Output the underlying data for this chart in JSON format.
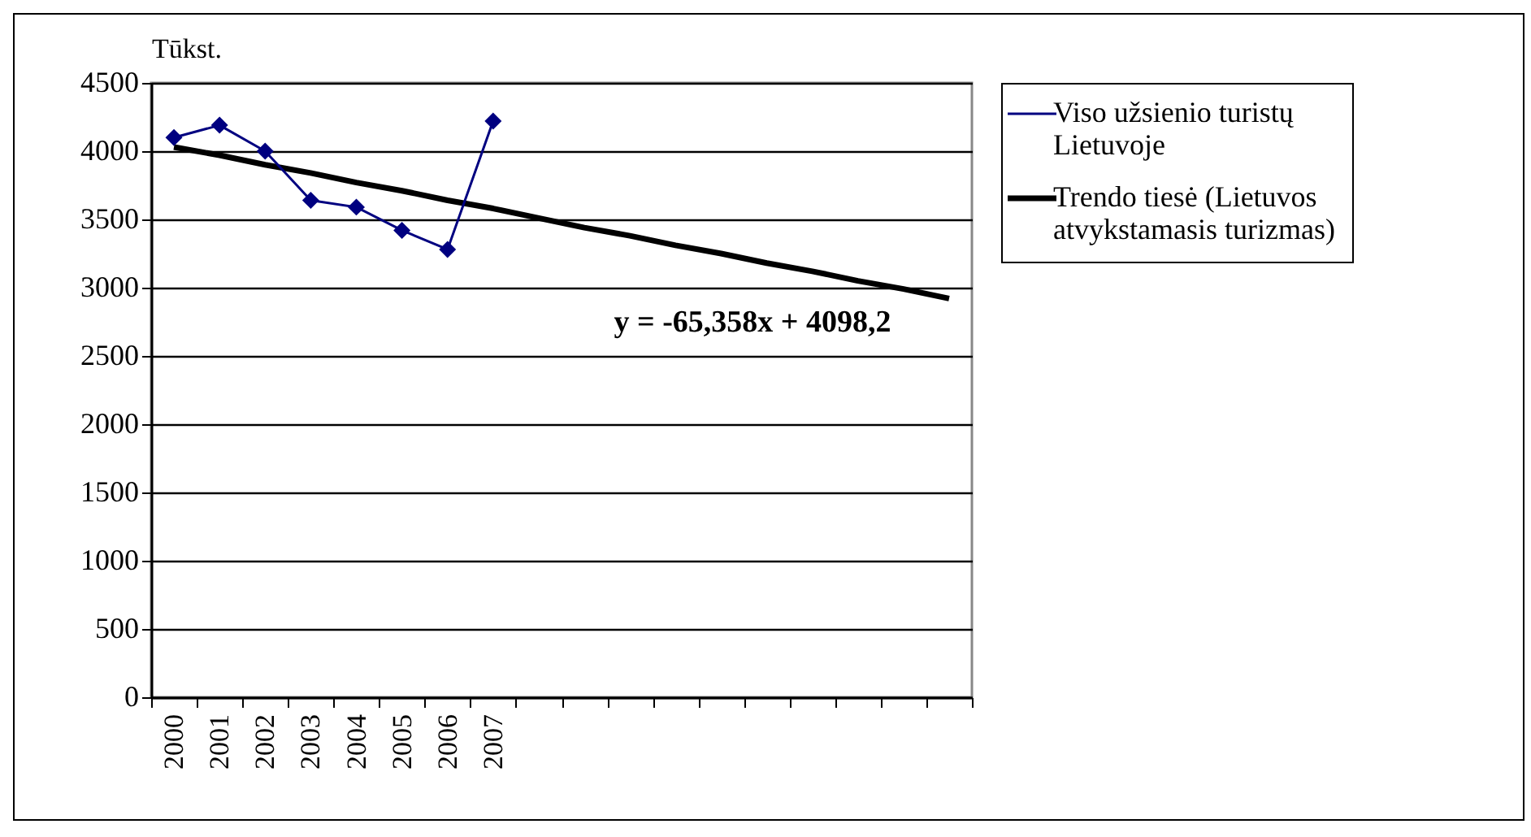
{
  "chart_data": {
    "type": "line",
    "ylabel": "Tūkst.",
    "categories": [
      "2000",
      "2001",
      "2002",
      "2003",
      "2004",
      "2005",
      "2006",
      "2007",
      null,
      null,
      null,
      null,
      null,
      null,
      null,
      null,
      null,
      null
    ],
    "series": [
      {
        "name": "Viso užsienio turistų Lietuvoje",
        "color": "#000080",
        "marker": "diamond",
        "values": [
          4100,
          4190,
          4000,
          3640,
          3590,
          3420,
          3280,
          4220,
          null,
          null,
          null,
          null,
          null,
          null,
          null,
          null,
          null,
          null
        ]
      },
      {
        "name": "Trendo tiesė (Lietuvos atvykstamasis turizmas)",
        "color": "#000000",
        "marker": "none",
        "values": [
          4030,
          3970,
          3900,
          3840,
          3770,
          3710,
          3640,
          3580,
          3510,
          3440,
          3380,
          3310,
          3250,
          3180,
          3120,
          3050,
          2990,
          2920
        ]
      }
    ],
    "annotations": [
      "y = -65,358x + 4098,2"
    ],
    "ylim": [
      0,
      4500
    ],
    "yticks": [
      0,
      500,
      1000,
      1500,
      2000,
      2500,
      3000,
      3500,
      4000,
      4500
    ],
    "grid": "y",
    "legend": "right"
  }
}
